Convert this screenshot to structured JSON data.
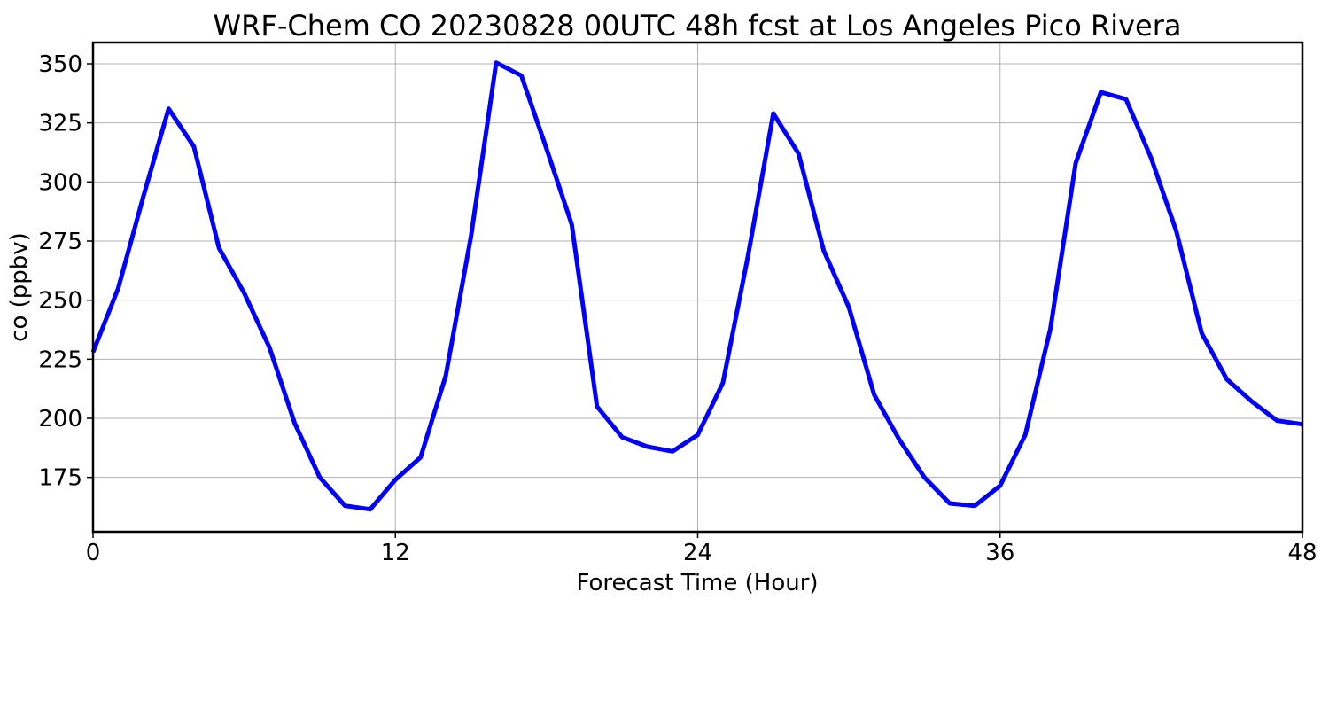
{
  "chart_data": {
    "type": "line",
    "title": "WRF-Chem CO  20230828 00UTC 48h fcst at Los Angeles Pico Rivera",
    "xlabel": "Forecast Time (Hour)",
    "ylabel": "co  (ppbv)",
    "xlim": [
      0,
      48
    ],
    "ylim": [
      152,
      359
    ],
    "xticks": [
      0,
      12,
      24,
      36,
      48
    ],
    "xtick_labels": [
      "0",
      "12",
      "24",
      "36",
      "48"
    ],
    "yticks": [
      175,
      200,
      225,
      250,
      275,
      300,
      325,
      350
    ],
    "ytick_labels": [
      "175",
      "200",
      "225",
      "250",
      "275",
      "300",
      "325",
      "350"
    ],
    "grid": true,
    "legend": "none",
    "series": [
      {
        "color": "#0000ff",
        "x": [
          0,
          1,
          2,
          3,
          4,
          5,
          6,
          7,
          8,
          9,
          10,
          11,
          12,
          13,
          14,
          15,
          16,
          17,
          18,
          19,
          20,
          21,
          22,
          23,
          24,
          25,
          26,
          27,
          28,
          29,
          30,
          31,
          32,
          33,
          34,
          35,
          36,
          37,
          38,
          39,
          40,
          41,
          42,
          43,
          44,
          45,
          46,
          47,
          48
        ],
        "values": [
          228,
          255,
          294,
          331,
          315,
          272,
          253,
          230,
          198,
          175,
          163,
          161.5,
          174,
          183.5,
          218,
          277,
          350.5,
          345,
          314,
          282,
          205,
          192,
          188,
          186,
          193,
          215,
          269,
          329,
          312,
          271,
          247,
          210,
          191,
          175,
          164,
          163,
          171.5,
          193,
          238,
          308,
          338,
          335,
          310,
          279,
          236,
          216.5,
          207,
          199,
          197.5
        ]
      }
    ]
  }
}
